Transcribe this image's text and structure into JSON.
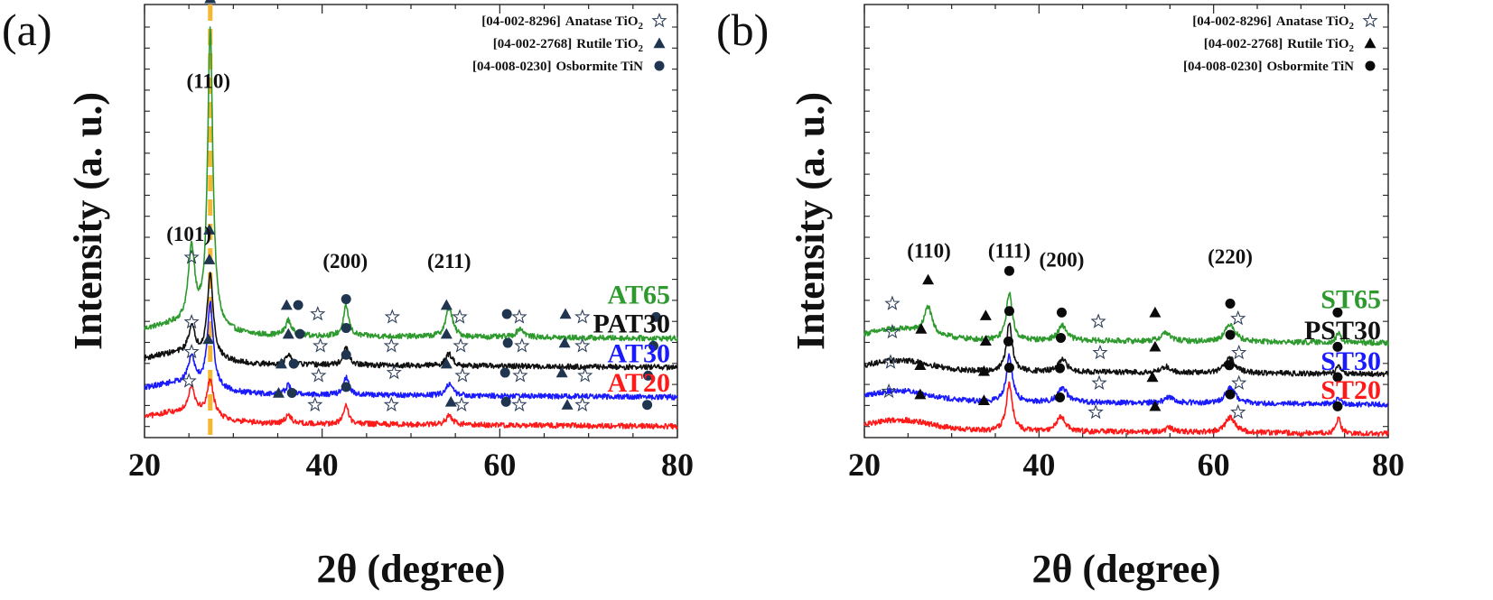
{
  "colors": {
    "green": "#2e9a2e",
    "black": "#111111",
    "blue": "#1a1aff",
    "red": "#ff1a1a",
    "marker_dark": "#1f3550",
    "marker_black": "#0a0a0a",
    "star": "#2e3f5a",
    "guide": "#f5b830"
  },
  "chart_data": [
    {
      "type": "line",
      "panel_label": "(a)",
      "xlabel": "2θ (degree)",
      "ylabel": "Intensity (a. u.)",
      "xlim": [
        20,
        80
      ],
      "xticks": [
        "20",
        "40",
        "60",
        "80"
      ],
      "legend": {
        "position": "top-right",
        "entries": [
          {
            "ref": "[04-002-8296]",
            "name": "Anatase TiO",
            "sub": "2",
            "marker": "star"
          },
          {
            "ref": "[04-002-2768]",
            "name": "Rutile TiO",
            "sub": "2",
            "marker": "triangle"
          },
          {
            "ref": "[04-008-0230]",
            "name": "Osbormite TiN",
            "sub": "",
            "marker": "circle"
          }
        ]
      },
      "guide_line_2theta": 27.4,
      "series": [
        {
          "name": "AT65",
          "color": "#2e9a2e",
          "baseline": 0.345,
          "peaks": [
            [
              25.3,
              0.25,
              0.45
            ],
            [
              27.4,
              1.0,
              0.35
            ],
            [
              36.2,
              0.05,
              0.4
            ],
            [
              42.7,
              0.1,
              0.35
            ],
            [
              54.3,
              0.1,
              0.45
            ],
            [
              62.3,
              0.03,
              0.5
            ]
          ],
          "markers": [
            {
              "x": 25.3,
              "h": 0.26,
              "type": "star"
            },
            {
              "x": 27.4,
              "h": 1.13,
              "type": "triangle"
            },
            {
              "x": 36.0,
              "h": 0.1,
              "type": "triangle"
            },
            {
              "x": 37.3,
              "h": 0.1,
              "type": "circle"
            },
            {
              "x": 39.5,
              "h": 0.07,
              "type": "star"
            },
            {
              "x": 42.7,
              "h": 0.12,
              "type": "circle"
            },
            {
              "x": 47.9,
              "h": 0.06,
              "type": "star"
            },
            {
              "x": 54.0,
              "h": 0.1,
              "type": "triangle"
            },
            {
              "x": 55.5,
              "h": 0.06,
              "type": "star"
            },
            {
              "x": 60.8,
              "h": 0.07,
              "type": "circle"
            },
            {
              "x": 62.2,
              "h": 0.06,
              "type": "star"
            },
            {
              "x": 67.4,
              "h": 0.07,
              "type": "triangle"
            },
            {
              "x": 69.3,
              "h": 0.06,
              "type": "star"
            },
            {
              "x": 77.6,
              "h": 0.06,
              "type": "circle"
            }
          ]
        },
        {
          "name": "PAT30",
          "color": "#111111",
          "baseline": 0.248,
          "peaks": [
            [
              25.3,
              0.09,
              0.45
            ],
            [
              27.4,
              0.28,
              0.4
            ],
            [
              36.2,
              0.03,
              0.4
            ],
            [
              42.7,
              0.06,
              0.35
            ],
            [
              54.3,
              0.04,
              0.45
            ]
          ],
          "markers": [
            {
              "x": 25.3,
              "h": 0.14,
              "type": "star"
            },
            {
              "x": 27.3,
              "h": 0.45,
              "type": "triangle"
            },
            {
              "x": 36.2,
              "h": 0.1,
              "type": "triangle"
            },
            {
              "x": 37.5,
              "h": 0.1,
              "type": "circle"
            },
            {
              "x": 39.8,
              "h": 0.06,
              "type": "star"
            },
            {
              "x": 42.7,
              "h": 0.12,
              "type": "circle"
            },
            {
              "x": 47.8,
              "h": 0.06,
              "type": "star"
            },
            {
              "x": 54.0,
              "h": 0.1,
              "type": "triangle"
            },
            {
              "x": 55.6,
              "h": 0.06,
              "type": "star"
            },
            {
              "x": 60.9,
              "h": 0.07,
              "type": "circle"
            },
            {
              "x": 62.5,
              "h": 0.06,
              "type": "star"
            },
            {
              "x": 67.3,
              "h": 0.07,
              "type": "triangle"
            },
            {
              "x": 69.3,
              "h": 0.06,
              "type": "star"
            },
            {
              "x": 77.3,
              "h": 0.06,
              "type": "circle"
            }
          ]
        },
        {
          "name": "AT30",
          "color": "#1a1aff",
          "baseline": 0.148,
          "peaks": [
            [
              25.3,
              0.09,
              0.45
            ],
            [
              27.4,
              0.28,
              0.4
            ],
            [
              36.2,
              0.03,
              0.4
            ],
            [
              42.7,
              0.06,
              0.35
            ],
            [
              54.3,
              0.04,
              0.45
            ]
          ],
          "markers": [
            {
              "x": 25.3,
              "h": 0.14,
              "type": "star"
            },
            {
              "x": 27.3,
              "h": 0.45,
              "type": "triangle"
            },
            {
              "x": 35.4,
              "h": 0.1,
              "type": "triangle"
            },
            {
              "x": 36.8,
              "h": 0.1,
              "type": "circle"
            },
            {
              "x": 39.6,
              "h": 0.06,
              "type": "star"
            },
            {
              "x": 42.7,
              "h": 0.13,
              "type": "circle"
            },
            {
              "x": 48.1,
              "h": 0.07,
              "type": "star"
            },
            {
              "x": 54.0,
              "h": 0.1,
              "type": "triangle"
            },
            {
              "x": 55.8,
              "h": 0.06,
              "type": "star"
            },
            {
              "x": 60.6,
              "h": 0.07,
              "type": "circle"
            },
            {
              "x": 62.3,
              "h": 0.06,
              "type": "star"
            },
            {
              "x": 67.0,
              "h": 0.07,
              "type": "triangle"
            },
            {
              "x": 69.6,
              "h": 0.06,
              "type": "star"
            },
            {
              "x": 76.7,
              "h": 0.06,
              "type": "circle"
            }
          ]
        },
        {
          "name": "AT20",
          "color": "#ff1a1a",
          "baseline": 0.05,
          "peaks": [
            [
              25.3,
              0.09,
              0.45
            ],
            [
              27.4,
              0.12,
              0.45
            ],
            [
              36.2,
              0.03,
              0.4
            ],
            [
              42.7,
              0.06,
              0.35
            ],
            [
              54.3,
              0.03,
              0.45
            ]
          ],
          "markers": [
            {
              "x": 25.0,
              "h": 0.14,
              "type": "star"
            },
            {
              "x": 27.2,
              "h": 0.28,
              "type": "triangle"
            },
            {
              "x": 35.1,
              "h": 0.1,
              "type": "triangle"
            },
            {
              "x": 36.6,
              "h": 0.1,
              "type": "circle"
            },
            {
              "x": 39.2,
              "h": 0.06,
              "type": "star"
            },
            {
              "x": 42.7,
              "h": 0.12,
              "type": "circle"
            },
            {
              "x": 47.8,
              "h": 0.06,
              "type": "star"
            },
            {
              "x": 54.5,
              "h": 0.07,
              "type": "triangle"
            },
            {
              "x": 55.7,
              "h": 0.06,
              "type": "star"
            },
            {
              "x": 60.7,
              "h": 0.07,
              "type": "circle"
            },
            {
              "x": 62.2,
              "h": 0.06,
              "type": "star"
            },
            {
              "x": 67.6,
              "h": 0.06,
              "type": "triangle"
            },
            {
              "x": 69.3,
              "h": 0.06,
              "type": "star"
            },
            {
              "x": 76.6,
              "h": 0.06,
              "type": "circle"
            }
          ]
        }
      ],
      "hkl_labels": [
        {
          "text": "(101)",
          "x": 25.0,
          "y": 0.66
        },
        {
          "text": "(110)",
          "x": 27.2,
          "y": 1.175
        },
        {
          "text": "(200)",
          "x": 42.6,
          "y": 0.57
        },
        {
          "text": "(211)",
          "x": 54.3,
          "y": 0.57
        }
      ]
    },
    {
      "type": "line",
      "panel_label": "(b)",
      "xlabel": "2θ (degree)",
      "ylabel": "Intensity (a. u.)",
      "xlim": [
        20,
        80
      ],
      "xticks": [
        "20",
        "40",
        "60",
        "80"
      ],
      "legend": {
        "position": "top-right",
        "entries": [
          {
            "ref": "[04-002-8296]",
            "name": "Anatase TiO",
            "sub": "2",
            "marker": "star"
          },
          {
            "ref": "[04-002-2768]",
            "name": "Rutile TiO",
            "sub": "2",
            "marker": "triangle"
          },
          {
            "ref": "[04-008-0230]",
            "name": "Osbormite TiN",
            "sub": "",
            "marker": "circle"
          }
        ]
      },
      "series": [
        {
          "name": "ST65",
          "color": "#2e9a2e",
          "baseline": 0.33,
          "peaks": [
            [
              27.3,
              0.09,
              0.5
            ],
            [
              36.6,
              0.16,
              0.4
            ],
            [
              42.7,
              0.05,
              0.6
            ],
            [
              54.5,
              0.03,
              0.6
            ],
            [
              61.9,
              0.06,
              0.7
            ],
            [
              74.3,
              0.03,
              0.3
            ]
          ],
          "markers": [
            {
              "x": 23.2,
              "h": 0.12,
              "type": "star"
            },
            {
              "x": 27.3,
              "h": 0.2,
              "type": "triangle"
            },
            {
              "x": 33.9,
              "h": 0.08,
              "type": "triangle"
            },
            {
              "x": 36.6,
              "h": 0.23,
              "type": "circle"
            },
            {
              "x": 42.6,
              "h": 0.09,
              "type": "circle"
            },
            {
              "x": 46.8,
              "h": 0.06,
              "type": "star"
            },
            {
              "x": 53.3,
              "h": 0.09,
              "type": "triangle"
            },
            {
              "x": 61.9,
              "h": 0.12,
              "type": "circle"
            },
            {
              "x": 62.8,
              "h": 0.07,
              "type": "star"
            },
            {
              "x": 74.2,
              "h": 0.09,
              "type": "circle"
            }
          ]
        },
        {
          "name": "PST30",
          "color": "#111111",
          "baseline": 0.225,
          "peaks": [
            [
              36.6,
              0.16,
              0.4
            ],
            [
              42.7,
              0.04,
              0.6
            ],
            [
              54.5,
              0.02,
              0.6
            ],
            [
              61.9,
              0.05,
              0.7
            ],
            [
              74.3,
              0.03,
              0.3
            ]
          ],
          "markers": [
            {
              "x": 23.2,
              "h": 0.13,
              "type": "star"
            },
            {
              "x": 26.5,
              "h": 0.14,
              "type": "triangle"
            },
            {
              "x": 33.9,
              "h": 0.1,
              "type": "triangle"
            },
            {
              "x": 36.6,
              "h": 0.2,
              "type": "circle"
            },
            {
              "x": 42.5,
              "h": 0.11,
              "type": "circle"
            },
            {
              "x": 47.0,
              "h": 0.06,
              "type": "star"
            },
            {
              "x": 53.3,
              "h": 0.08,
              "type": "triangle"
            },
            {
              "x": 61.9,
              "h": 0.12,
              "type": "circle"
            },
            {
              "x": 62.9,
              "h": 0.06,
              "type": "star"
            },
            {
              "x": 74.2,
              "h": 0.08,
              "type": "circle"
            }
          ]
        },
        {
          "name": "ST30",
          "color": "#1a1aff",
          "baseline": 0.123,
          "peaks": [
            [
              36.6,
              0.16,
              0.4
            ],
            [
              42.7,
              0.05,
              0.6
            ],
            [
              55.0,
              0.02,
              0.6
            ],
            [
              61.9,
              0.05,
              0.7
            ],
            [
              74.3,
              0.02,
              0.3
            ]
          ],
          "markers": [
            {
              "x": 23.0,
              "h": 0.13,
              "type": "star"
            },
            {
              "x": 26.4,
              "h": 0.12,
              "type": "triangle"
            },
            {
              "x": 33.7,
              "h": 0.1,
              "type": "triangle"
            },
            {
              "x": 36.5,
              "h": 0.2,
              "type": "circle"
            },
            {
              "x": 42.4,
              "h": 0.11,
              "type": "circle"
            },
            {
              "x": 46.9,
              "h": 0.06,
              "type": "star"
            },
            {
              "x": 53.0,
              "h": 0.08,
              "type": "triangle"
            },
            {
              "x": 61.8,
              "h": 0.12,
              "type": "circle"
            },
            {
              "x": 62.9,
              "h": 0.06,
              "type": "star"
            },
            {
              "x": 74.2,
              "h": 0.08,
              "type": "circle"
            }
          ]
        },
        {
          "name": "ST20",
          "color": "#ff1a1a",
          "baseline": 0.025,
          "peaks": [
            [
              36.6,
              0.16,
              0.4
            ],
            [
              42.5,
              0.05,
              0.6
            ],
            [
              55.0,
              0.015,
              0.6
            ],
            [
              61.9,
              0.05,
              0.7
            ],
            [
              74.3,
              0.05,
              0.3
            ]
          ],
          "markers": [
            {
              "x": 22.8,
              "h": 0.13,
              "type": "star"
            },
            {
              "x": 26.4,
              "h": 0.12,
              "type": "triangle"
            },
            {
              "x": 33.7,
              "h": 0.1,
              "type": "triangle"
            },
            {
              "x": 36.6,
              "h": 0.21,
              "type": "circle"
            },
            {
              "x": 42.4,
              "h": 0.11,
              "type": "circle"
            },
            {
              "x": 46.5,
              "h": 0.06,
              "type": "star"
            },
            {
              "x": 53.3,
              "h": 0.08,
              "type": "triangle"
            },
            {
              "x": 61.9,
              "h": 0.12,
              "type": "circle"
            },
            {
              "x": 62.8,
              "h": 0.06,
              "type": "star"
            },
            {
              "x": 74.2,
              "h": 0.08,
              "type": "circle"
            }
          ]
        }
      ],
      "hkl_labels": [
        {
          "text": "(110)",
          "x": 27.4,
          "y": 0.605
        },
        {
          "text": "(111)",
          "x": 36.6,
          "y": 0.605
        },
        {
          "text": "(200)",
          "x": 42.6,
          "y": 0.575
        },
        {
          "text": "(220)",
          "x": 61.9,
          "y": 0.585
        }
      ]
    }
  ]
}
